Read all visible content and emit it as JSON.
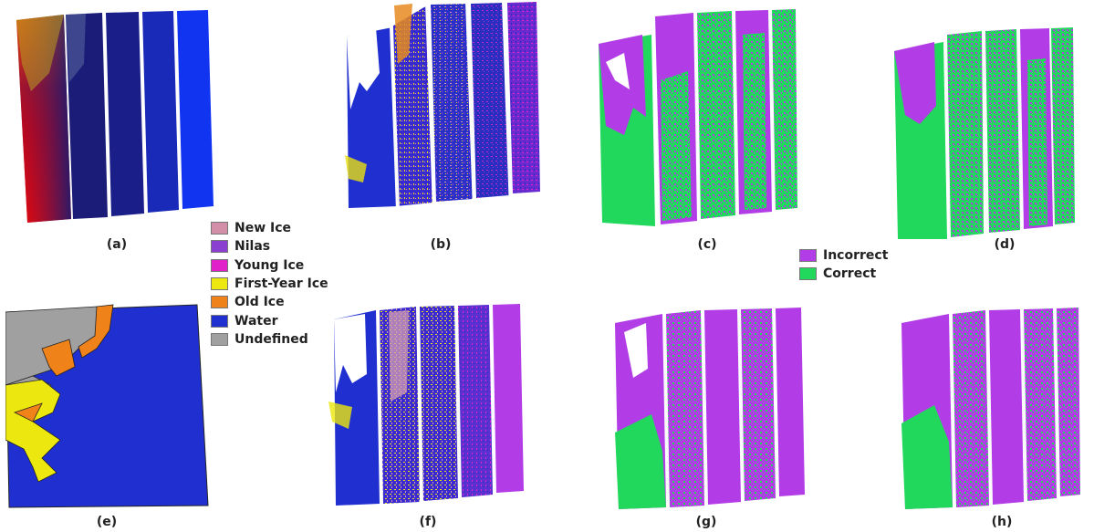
{
  "panels": [
    {
      "id": "a",
      "caption": "(a)",
      "kind": "sar"
    },
    {
      "id": "b",
      "caption": "(b)",
      "kind": "classification"
    },
    {
      "id": "c",
      "caption": "(c)",
      "kind": "accuracy"
    },
    {
      "id": "d",
      "caption": "(d)",
      "kind": "accuracy"
    },
    {
      "id": "e",
      "caption": "(e)",
      "kind": "ice-chart"
    },
    {
      "id": "f",
      "caption": "(f)",
      "kind": "classification"
    },
    {
      "id": "g",
      "caption": "(g)",
      "kind": "accuracy"
    },
    {
      "id": "h",
      "caption": "(h)",
      "kind": "accuracy"
    }
  ],
  "legend_ice": [
    {
      "label": "New Ice",
      "color": "#d48fa8"
    },
    {
      "label": "Nilas",
      "color": "#8a3fd0"
    },
    {
      "label": "Young Ice",
      "color": "#e020c8"
    },
    {
      "label": "First-Year Ice",
      "color": "#ece70e"
    },
    {
      "label": "Old Ice",
      "color": "#f0821a"
    },
    {
      "label": "Water",
      "color": "#1f2fd0"
    },
    {
      "label": "Undefined",
      "color": "#a0a0a0"
    }
  ],
  "legend_accuracy": [
    {
      "label": "Incorrect",
      "color": "#b23ce6"
    },
    {
      "label": "Correct",
      "color": "#22d85c"
    }
  ]
}
